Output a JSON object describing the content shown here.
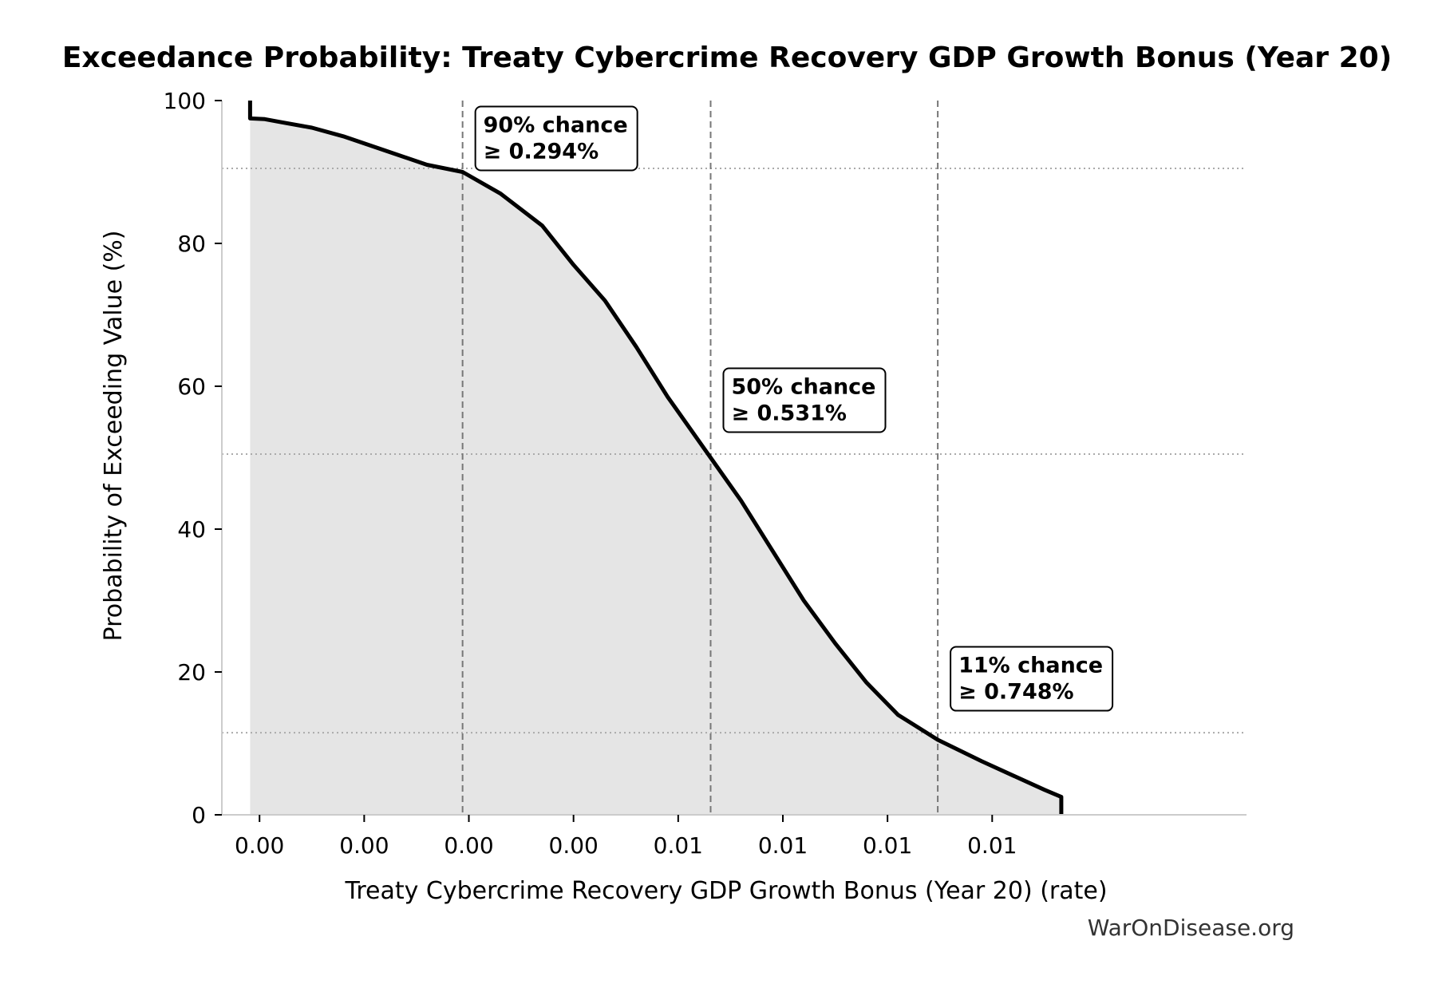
{
  "chart_data": {
    "type": "area",
    "title": "Exceedance Probability: Treaty Cybercrime Recovery GDP Growth Bonus (Year 20)",
    "xlabel": "Treaty Cybercrime Recovery GDP Growth Bonus (Year 20) (rate)",
    "ylabel": "Probability of Exceeding Value (%)",
    "xlim": [
      0.00064,
      0.01043
    ],
    "ylim": [
      0,
      100
    ],
    "x_ticks": [
      0.001,
      0.002,
      0.003,
      0.004,
      0.005,
      0.006,
      0.007,
      0.008
    ],
    "x_tick_labels": [
      "0.00",
      "0.00",
      "0.00",
      "0.00",
      "0.01",
      "0.01",
      "0.01",
      "0.01"
    ],
    "y_ticks": [
      0,
      20,
      40,
      60,
      80,
      100
    ],
    "y_tick_labels": [
      "0",
      "20",
      "40",
      "60",
      "80",
      "100"
    ],
    "grid": "horizontal dotted at annotated levels",
    "legend": "none",
    "colors": {
      "line": "#000000",
      "fill": "#e5e5e5",
      "ref_line": "#777777",
      "grid": "#aaaaaa"
    },
    "series": [
      {
        "x": [
          0.00091,
          0.00091,
          0.00105,
          0.0012,
          0.0015,
          0.0018,
          0.0022,
          0.0026,
          0.00294,
          0.0033,
          0.0037,
          0.004,
          0.0043,
          0.0046,
          0.0049,
          0.00531,
          0.0056,
          0.0059,
          0.0062,
          0.0065,
          0.0068,
          0.0071,
          0.00748,
          0.0079,
          0.0082,
          0.0085,
          0.00866,
          0.00866
        ],
        "y": [
          100,
          97.5,
          97.4,
          97.0,
          96.2,
          95.0,
          93.0,
          91.0,
          90.0,
          87.0,
          82.5,
          77.0,
          72.0,
          65.5,
          58.5,
          50.0,
          44.0,
          37.0,
          30.0,
          24.0,
          18.5,
          14.0,
          10.5,
          7.5,
          5.5,
          3.5,
          2.5,
          0
        ]
      }
    ],
    "annotations": [
      {
        "prob": 90,
        "value": 0.00294,
        "line1": "90% chance",
        "line2": "≥ 0.294%"
      },
      {
        "prob": 50,
        "value": 0.00531,
        "line1": "50% chance",
        "line2": "≥ 0.531%"
      },
      {
        "prob": 11,
        "value": 0.00748,
        "line1": "11% chance",
        "line2": "≥ 0.748%"
      }
    ]
  },
  "watermark": "WarOnDisease.org"
}
